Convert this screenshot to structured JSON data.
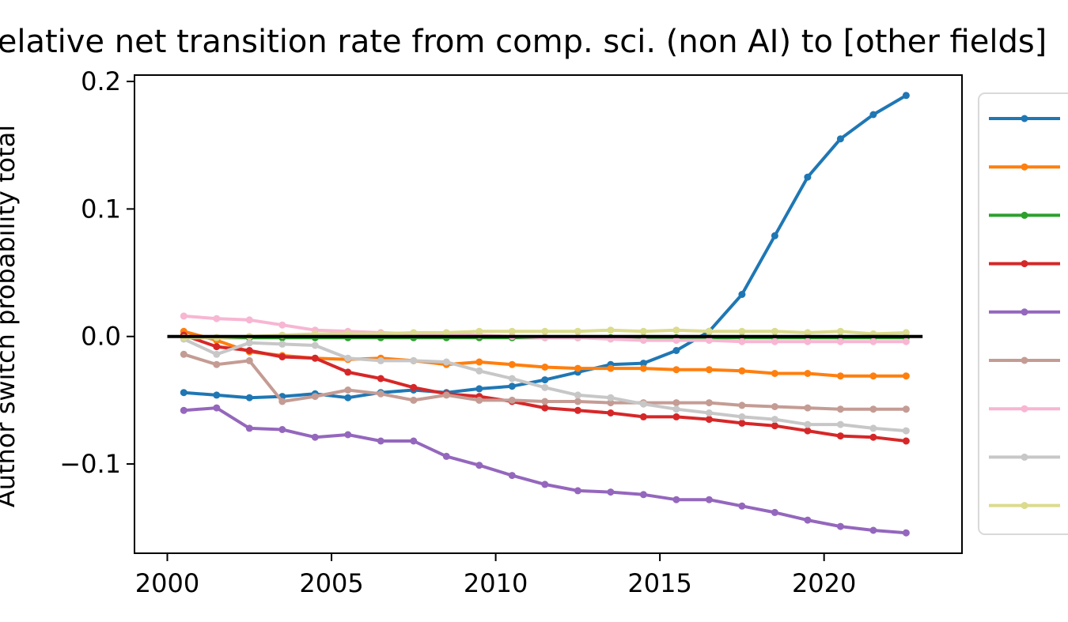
{
  "chart_data": {
    "type": "line",
    "title": "Relative net transition rate from comp. sci. (non AI) to [other fields]",
    "xlabel": "",
    "ylabel": "Author switch probability total",
    "xlim": [
      1999,
      2024.2
    ],
    "ylim": [
      -0.17,
      0.205
    ],
    "xticks": [
      2000,
      2005,
      2010,
      2015,
      2020
    ],
    "yticks": [
      0.2,
      0.1,
      0.0,
      -0.1
    ],
    "ytick_labels": [
      "0.2",
      "0.1",
      "0.0",
      "−0.1"
    ],
    "reference_line": {
      "y": 0.0,
      "x_start": 2000,
      "x_end": 2023,
      "color": "#000000"
    },
    "grid": false,
    "legend_position": "right-outside",
    "x": [
      2000.5,
      2001.5,
      2002.5,
      2003.5,
      2004.5,
      2005.5,
      2006.5,
      2007.5,
      2008.5,
      2009.5,
      2010.5,
      2011.5,
      2012.5,
      2013.5,
      2014.5,
      2015.5,
      2016.5,
      2017.5,
      2018.5,
      2019.5,
      2020.5,
      2021.5,
      2022.5
    ],
    "series": [
      {
        "color": "#1f77b4",
        "values": [
          -0.044,
          -0.046,
          -0.048,
          -0.047,
          -0.045,
          -0.048,
          -0.044,
          -0.042,
          -0.044,
          -0.041,
          -0.039,
          -0.034,
          -0.028,
          -0.022,
          -0.021,
          -0.011,
          0.004,
          0.033,
          0.079,
          0.125,
          0.155,
          0.174,
          0.189
        ]
      },
      {
        "color": "#ff7f0e",
        "values": [
          0.004,
          -0.003,
          -0.012,
          -0.015,
          -0.017,
          -0.018,
          -0.017,
          -0.019,
          -0.022,
          -0.02,
          -0.022,
          -0.024,
          -0.025,
          -0.025,
          -0.025,
          -0.026,
          -0.026,
          -0.027,
          -0.029,
          -0.029,
          -0.031,
          -0.031,
          -0.031
        ]
      },
      {
        "color": "#2ca02c",
        "values": [
          -0.001,
          -0.001,
          -0.001,
          -0.001,
          -0.001,
          -0.001,
          -0.001,
          -0.001,
          -0.001,
          -0.001,
          -0.001,
          -0.001,
          -0.001,
          -0.001,
          -0.001,
          -0.001,
          -0.001,
          -0.001,
          -0.001,
          -0.001,
          -0.001,
          -0.001,
          -0.001
        ]
      },
      {
        "color": "#d62728",
        "values": [
          0.001,
          -0.008,
          -0.011,
          -0.016,
          -0.017,
          -0.028,
          -0.033,
          -0.04,
          -0.045,
          -0.047,
          -0.051,
          -0.056,
          -0.058,
          -0.06,
          -0.063,
          -0.063,
          -0.065,
          -0.068,
          -0.07,
          -0.074,
          -0.078,
          -0.079,
          -0.082
        ]
      },
      {
        "color": "#9467bd",
        "values": [
          -0.058,
          -0.056,
          -0.072,
          -0.073,
          -0.079,
          -0.077,
          -0.082,
          -0.082,
          -0.094,
          -0.101,
          -0.109,
          -0.116,
          -0.121,
          -0.122,
          -0.124,
          -0.128,
          -0.128,
          -0.133,
          -0.138,
          -0.144,
          -0.149,
          -0.152,
          -0.154
        ]
      },
      {
        "color": "#c49c94",
        "values": [
          -0.014,
          -0.022,
          -0.019,
          -0.051,
          -0.047,
          -0.042,
          -0.045,
          -0.05,
          -0.046,
          -0.05,
          -0.05,
          -0.051,
          -0.051,
          -0.052,
          -0.052,
          -0.052,
          -0.052,
          -0.054,
          -0.055,
          -0.056,
          -0.057,
          -0.057,
          -0.057
        ]
      },
      {
        "color": "#f7b6d2",
        "values": [
          0.016,
          0.014,
          0.013,
          0.009,
          0.005,
          0.004,
          0.003,
          0.002,
          0.002,
          0.001,
          0.0,
          -0.001,
          -0.001,
          -0.002,
          -0.003,
          -0.003,
          -0.003,
          -0.004,
          -0.004,
          -0.004,
          -0.004,
          -0.004,
          -0.004
        ]
      },
      {
        "color": "#c7c7c7",
        "values": [
          -0.002,
          -0.014,
          -0.005,
          -0.006,
          -0.007,
          -0.017,
          -0.019,
          -0.019,
          -0.02,
          -0.027,
          -0.033,
          -0.04,
          -0.046,
          -0.048,
          -0.053,
          -0.057,
          -0.06,
          -0.063,
          -0.065,
          -0.069,
          -0.069,
          -0.072,
          -0.074
        ]
      },
      {
        "color": "#dbdb8d",
        "values": [
          -0.001,
          -0.001,
          0.0,
          0.001,
          0.002,
          0.002,
          0.002,
          0.003,
          0.003,
          0.004,
          0.004,
          0.004,
          0.004,
          0.005,
          0.004,
          0.005,
          0.004,
          0.004,
          0.004,
          0.003,
          0.004,
          0.002,
          0.003
        ]
      }
    ]
  }
}
